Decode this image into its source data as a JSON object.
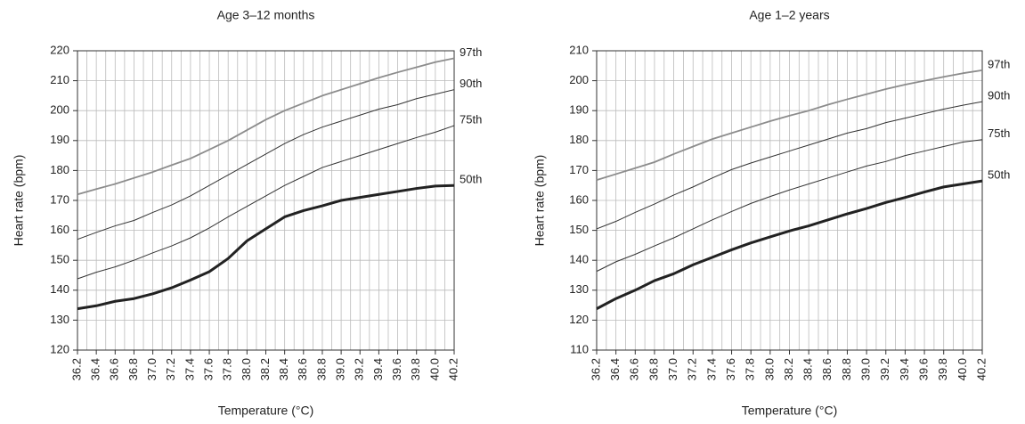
{
  "chart_data": [
    {
      "type": "line",
      "title": "Age 3–12 months",
      "xlabel": "Temperature (°C)",
      "ylabel": "Heart rate (bpm)",
      "x": [
        36.2,
        36.4,
        36.6,
        36.8,
        37,
        37.2,
        37.4,
        37.6,
        37.8,
        38,
        38.2,
        38.4,
        38.6,
        38.8,
        39,
        39.2,
        39.4,
        39.6,
        39.8,
        40,
        40.2
      ],
      "xlim": [
        36.2,
        40.2
      ],
      "xticks": [
        36.2,
        36.4,
        36.6,
        36.8,
        {
          "value": 37,
          "label": "37.0"
        },
        37.2,
        37.4,
        37.6,
        37.8,
        {
          "value": 38,
          "label": "38.0"
        },
        38.2,
        38.4,
        38.6,
        38.8,
        {
          "value": 39,
          "label": "39.0"
        },
        39.2,
        39.4,
        39.6,
        39.8,
        {
          "value": 40,
          "label": "40.0"
        },
        40.2
      ],
      "ylim": [
        120,
        220
      ],
      "yticks": [
        120,
        130,
        140,
        150,
        160,
        170,
        180,
        190,
        200,
        210,
        220
      ],
      "grid": true,
      "series": [
        {
          "name": "97th",
          "color": "#8c8c8c",
          "linewidth": 1.8,
          "values": [
            172,
            173.8,
            175.5,
            177.5,
            179.5,
            181.8,
            184,
            187,
            190,
            193.5,
            197,
            200,
            202.5,
            205,
            207,
            209,
            211,
            212.8,
            214.5,
            216.2,
            217.5
          ]
        },
        {
          "name": "90th",
          "color": "#333333",
          "linewidth": 1,
          "values": [
            157,
            159.3,
            161.5,
            163.3,
            166,
            168.5,
            171.5,
            175,
            178.5,
            182,
            185.5,
            189,
            192,
            194.5,
            196.5,
            198.5,
            200.5,
            202,
            204,
            205.5,
            207
          ]
        },
        {
          "name": "75th",
          "color": "#333333",
          "linewidth": 1,
          "values": [
            143.8,
            146,
            147.8,
            150,
            152.5,
            154.8,
            157.5,
            160.8,
            164.5,
            168,
            171.5,
            175,
            178,
            181,
            183,
            185,
            187,
            189,
            191,
            192.8,
            195
          ]
        },
        {
          "name": "50th",
          "color": "#222222",
          "linewidth": 3,
          "values": [
            133.8,
            134.8,
            136.3,
            137.2,
            138.8,
            140.8,
            143.4,
            146.2,
            150.6,
            156.5,
            160.5,
            164.5,
            166.6,
            168.2,
            170,
            171,
            172,
            173,
            174,
            174.8,
            175
          ]
        }
      ]
    },
    {
      "type": "line",
      "title": "Age 1–2 years",
      "xlabel": "Temperature (°C)",
      "ylabel": "Heart rate (bpm)",
      "x": [
        36.2,
        36.4,
        36.6,
        36.8,
        37,
        37.2,
        37.4,
        37.6,
        37.8,
        38,
        38.2,
        38.4,
        38.6,
        38.8,
        39,
        39.2,
        39.4,
        39.6,
        39.8,
        40,
        40.2
      ],
      "xlim": [
        36.2,
        40.2
      ],
      "xticks": [
        36.2,
        36.4,
        36.6,
        36.8,
        {
          "value": 37,
          "label": "37.0"
        },
        37.2,
        37.4,
        37.6,
        37.8,
        {
          "value": 38,
          "label": "38.0"
        },
        38.2,
        38.4,
        38.6,
        38.8,
        {
          "value": 39,
          "label": "39.0"
        },
        39.2,
        39.4,
        39.6,
        39.8,
        {
          "value": 40,
          "label": "40.0"
        },
        40.2
      ],
      "ylim": [
        110,
        210
      ],
      "yticks": [
        110,
        120,
        130,
        140,
        150,
        160,
        170,
        180,
        190,
        200,
        210
      ],
      "grid": true,
      "series": [
        {
          "name": "97th",
          "color": "#8c8c8c",
          "linewidth": 1.8,
          "values": [
            166.8,
            168.8,
            170.8,
            172.8,
            175.5,
            178,
            180.5,
            182.5,
            184.5,
            186.5,
            188.3,
            190,
            192,
            193.8,
            195.5,
            197.2,
            198.7,
            200,
            201.3,
            202.5,
            203.5
          ]
        },
        {
          "name": "90th",
          "color": "#333333",
          "linewidth": 1,
          "values": [
            150.5,
            153,
            156,
            158.8,
            161.8,
            164.5,
            167.5,
            170.3,
            172.5,
            174.5,
            176.5,
            178.5,
            180.5,
            182.5,
            184,
            186,
            187.5,
            189,
            190.5,
            191.8,
            193
          ]
        },
        {
          "name": "75th",
          "color": "#333333",
          "linewidth": 1,
          "values": [
            136.3,
            139.5,
            142,
            144.8,
            147.5,
            150.5,
            153.5,
            156.3,
            159,
            161.3,
            163.5,
            165.5,
            167.5,
            169.5,
            171.5,
            173,
            175,
            176.5,
            178,
            179.5,
            180.3
          ]
        },
        {
          "name": "50th",
          "color": "#222222",
          "linewidth": 3,
          "values": [
            123.8,
            127.2,
            130,
            133.2,
            135.5,
            138.5,
            141,
            143.5,
            145.8,
            147.8,
            149.8,
            151.5,
            153.5,
            155.5,
            157.3,
            159.3,
            161,
            162.8,
            164.5,
            165.5,
            166.5
          ]
        }
      ]
    }
  ]
}
